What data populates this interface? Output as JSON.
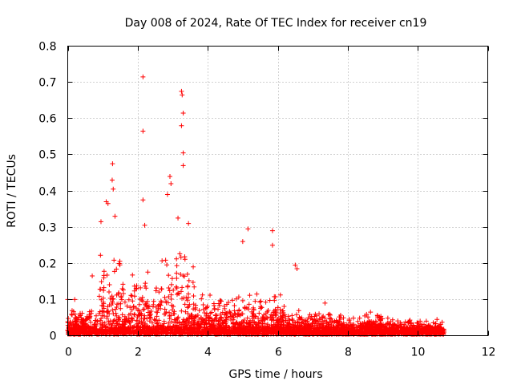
{
  "chart_data": {
    "type": "scatter",
    "title": "Day 008 of 2024, Rate Of TEC Index for receiver cn19",
    "xlabel": "GPS time / hours",
    "ylabel": "ROTI / TECUs",
    "xlim": [
      0,
      12
    ],
    "ylim": [
      0,
      0.8
    ],
    "xticks": [
      0,
      2,
      4,
      6,
      8,
      10,
      12
    ],
    "yticks": [
      0,
      0.1,
      0.2,
      0.3,
      0.4,
      0.5,
      0.6,
      0.7,
      0.8
    ],
    "xtick_labels": [
      "0",
      "2",
      "4",
      "6",
      "8",
      "10",
      "12"
    ],
    "ytick_labels": [
      "0",
      "0.1",
      "0.2",
      "0.3",
      "0.4",
      "0.5",
      "0.6",
      "0.7",
      "0.8"
    ],
    "grid": true,
    "marker": "+",
    "series": [
      {
        "name": "ROTI",
        "color": "#ff0000",
        "x_range": [
          0,
          10.75
        ],
        "notable_points": [
          {
            "x": 2.15,
            "y": 0.715
          },
          {
            "x": 2.15,
            "y": 0.565
          },
          {
            "x": 3.25,
            "y": 0.675
          },
          {
            "x": 3.27,
            "y": 0.665
          },
          {
            "x": 3.3,
            "y": 0.615
          },
          {
            "x": 3.25,
            "y": 0.58
          },
          {
            "x": 3.3,
            "y": 0.505
          },
          {
            "x": 3.3,
            "y": 0.47
          },
          {
            "x": 1.28,
            "y": 0.475
          },
          {
            "x": 1.27,
            "y": 0.43
          },
          {
            "x": 1.3,
            "y": 0.405
          },
          {
            "x": 1.1,
            "y": 0.37
          },
          {
            "x": 1.15,
            "y": 0.365
          },
          {
            "x": 2.92,
            "y": 0.44
          },
          {
            "x": 2.95,
            "y": 0.42
          },
          {
            "x": 2.85,
            "y": 0.39
          },
          {
            "x": 2.15,
            "y": 0.375
          },
          {
            "x": 3.15,
            "y": 0.325
          },
          {
            "x": 3.45,
            "y": 0.31
          },
          {
            "x": 2.2,
            "y": 0.305
          },
          {
            "x": 0.95,
            "y": 0.315
          },
          {
            "x": 1.35,
            "y": 0.33
          },
          {
            "x": 5.15,
            "y": 0.295
          },
          {
            "x": 5.0,
            "y": 0.26
          },
          {
            "x": 5.85,
            "y": 0.29
          },
          {
            "x": 5.85,
            "y": 0.25
          },
          {
            "x": 6.5,
            "y": 0.195
          },
          {
            "x": 6.55,
            "y": 0.185
          },
          {
            "x": 0.7,
            "y": 0.165
          },
          {
            "x": 0.0,
            "y": 0.1
          },
          {
            "x": 0.2,
            "y": 0.1
          },
          {
            "x": 7.35,
            "y": 0.09
          },
          {
            "x": 8.65,
            "y": 0.065
          },
          {
            "x": 10.55,
            "y": 0.045
          },
          {
            "x": 10.75,
            "y": 0.01
          }
        ]
      }
    ]
  }
}
